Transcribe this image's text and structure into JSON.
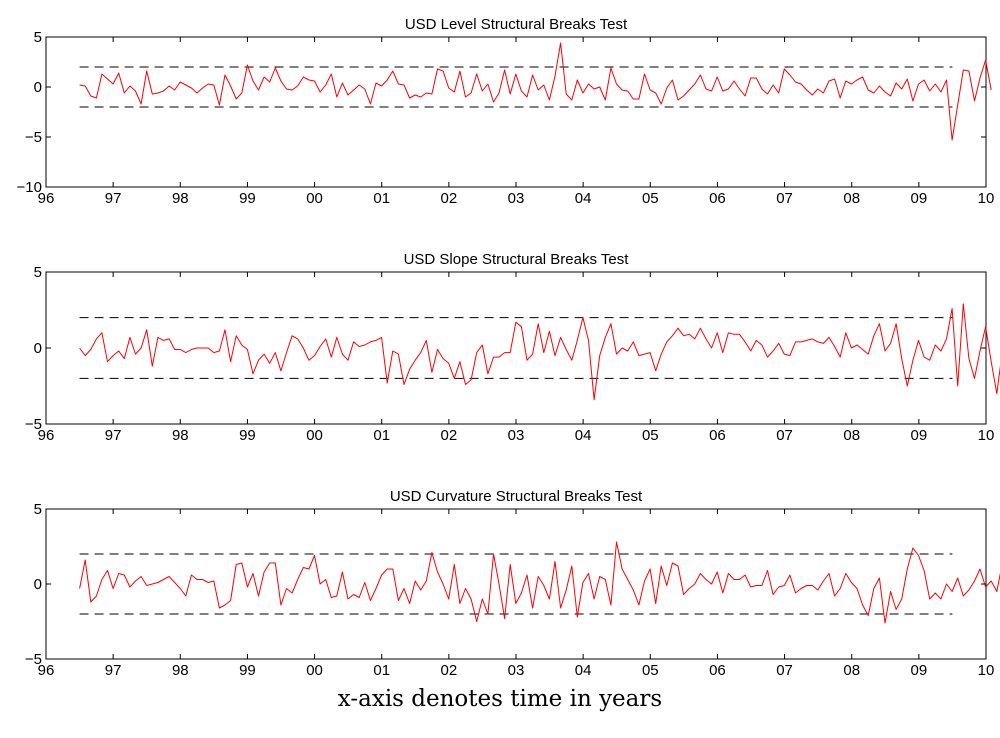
{
  "caption": "x-axis denotes time in years",
  "colors": {
    "series": "#ff0000",
    "bounds": "#000000"
  },
  "chart_data": [
    {
      "type": "line",
      "title": "USD Level Structural Breaks Test",
      "xlabel": "",
      "ylabel": "",
      "xlim": [
        96,
        110
      ],
      "ylim": [
        -10,
        5
      ],
      "xticks": [
        96,
        97,
        98,
        99,
        100,
        101,
        102,
        103,
        104,
        105,
        106,
        107,
        108,
        109,
        110
      ],
      "xticklabels": [
        "96",
        "97",
        "98",
        "99",
        "00",
        "01",
        "02",
        "03",
        "04",
        "05",
        "06",
        "07",
        "08",
        "09",
        "10"
      ],
      "yticks": [
        -10,
        -5,
        0,
        5
      ],
      "yticklabels": [
        "−10",
        "−5",
        "0",
        "5"
      ],
      "bounds": [
        2,
        -2
      ],
      "grid": false,
      "series": [
        {
          "x_start": 96.5,
          "x_step": 0.0833,
          "values": [
            0.2,
            0.1,
            -0.9,
            -1.1,
            1.3,
            0.8,
            0.3,
            1.4,
            -0.6,
            0.1,
            -0.4,
            -1.7,
            1.6,
            -0.7,
            -0.6,
            -0.4,
            0.1,
            -0.3,
            0.5,
            0.2,
            -0.1,
            -0.6,
            -0.1,
            0.3,
            0.2,
            -1.8,
            1.2,
            0.1,
            -1.2,
            -0.6,
            2.2,
            0.6,
            -0.3,
            1.0,
            0.5,
            1.9,
            0.6,
            -0.2,
            -0.3,
            0.1,
            1.0,
            0.7,
            0.6,
            -0.5,
            0.2,
            1.3,
            -1.0,
            0.4,
            -0.8,
            -0.3,
            0.2,
            -0.2,
            -1.7,
            0.4,
            0.1,
            0.7,
            1.6,
            0.3,
            0.2,
            -1.1,
            -0.8,
            -1.0,
            -0.6,
            -0.7,
            1.8,
            1.6,
            -0.1,
            -0.5,
            1.6,
            -1.0,
            -0.6,
            1.3,
            -0.4,
            0.3,
            -1.5,
            -0.6,
            1.7,
            -0.7,
            1.3,
            -0.4,
            -1.0,
            1.2,
            -0.3,
            0.2,
            -1.3,
            1.1,
            4.4,
            -0.7,
            -1.3,
            0.7,
            -0.6,
            0.3,
            -0.2,
            0.0,
            -1.3,
            1.9,
            0.3,
            -0.3,
            -0.4,
            -1.2,
            -1.2,
            1.3,
            -0.3,
            -0.6,
            -1.7,
            -0.1,
            0.7,
            -1.3,
            -0.9,
            -0.3,
            0.3,
            1.2,
            -0.2,
            -0.4,
            1.0,
            -0.4,
            -0.2,
            0.6,
            -0.2,
            -0.9,
            0.9,
            0.9,
            -0.2,
            -0.7,
            0.2,
            -0.6,
            1.8,
            1.2,
            0.5,
            0.3,
            -0.3,
            -0.8,
            -0.2,
            -0.6,
            0.6,
            0.8,
            -1.1,
            0.6,
            0.3,
            0.7,
            1.0,
            -0.3,
            -0.6,
            0.1,
            -0.5,
            -0.9,
            0.4,
            -0.2,
            0.8,
            -1.4,
            0.3,
            0.7,
            -0.4,
            0.3,
            -0.5,
            0.7,
            -5.3,
            -1.8,
            1.7,
            1.6,
            -1.4,
            0.9,
            2.7,
            -0.3
          ]
        }
      ]
    },
    {
      "type": "line",
      "title": "USD Slope Structural Breaks Test",
      "xlabel": "",
      "ylabel": "",
      "xlim": [
        96,
        110
      ],
      "ylim": [
        -5,
        5
      ],
      "xticks": [
        96,
        97,
        98,
        99,
        100,
        101,
        102,
        103,
        104,
        105,
        106,
        107,
        108,
        109,
        110
      ],
      "xticklabels": [
        "96",
        "97",
        "98",
        "99",
        "00",
        "01",
        "02",
        "03",
        "04",
        "05",
        "06",
        "07",
        "08",
        "09",
        "10"
      ],
      "yticks": [
        -5,
        0,
        5
      ],
      "yticklabels": [
        "−5",
        "0",
        "5"
      ],
      "bounds": [
        2,
        -2
      ],
      "grid": false,
      "series": [
        {
          "x_start": 96.5,
          "x_step": 0.0833,
          "values": [
            0.0,
            -0.5,
            -0.1,
            0.6,
            1.0,
            -0.9,
            -0.5,
            -0.2,
            -0.7,
            0.7,
            -0.4,
            0.0,
            1.2,
            -1.2,
            0.7,
            0.5,
            0.6,
            -0.1,
            -0.1,
            -0.3,
            -0.1,
            0.0,
            0.0,
            0.0,
            -0.3,
            -0.2,
            1.2,
            -0.9,
            0.8,
            0.2,
            -0.1,
            -1.7,
            -0.8,
            -0.4,
            -1.0,
            -0.3,
            -1.5,
            -0.3,
            0.8,
            0.6,
            0.0,
            -0.8,
            -0.5,
            0.1,
            0.6,
            -0.6,
            0.7,
            -0.4,
            -0.8,
            0.4,
            0.1,
            0.2,
            0.4,
            0.5,
            0.7,
            -2.3,
            -0.2,
            -0.4,
            -2.4,
            -1.4,
            -0.8,
            -0.3,
            0.5,
            -1.6,
            -0.1,
            -0.7,
            -1.0,
            -2.0,
            -0.9,
            -2.4,
            -2.1,
            -0.3,
            0.2,
            -1.7,
            -0.6,
            -0.6,
            -0.3,
            -0.3,
            1.7,
            1.4,
            -0.8,
            -0.4,
            1.6,
            -0.3,
            1.1,
            -0.5,
            0.7,
            -0.1,
            -0.8,
            0.5,
            2.0,
            0.5,
            -3.4,
            -0.5,
            0.7,
            1.6,
            -0.4,
            0.0,
            -0.2,
            0.4,
            -0.5,
            -0.4,
            -0.3,
            -1.5,
            -0.4,
            0.4,
            0.8,
            1.3,
            0.8,
            0.9,
            0.6,
            1.3,
            0.6,
            0.0,
            1.0,
            -0.3,
            1.0,
            0.9,
            0.9,
            0.4,
            -0.2,
            0.5,
            0.2,
            -0.6,
            -0.2,
            0.3,
            -0.4,
            -0.5,
            0.4,
            0.4,
            0.5,
            0.6,
            0.4,
            0.3,
            0.7,
            0.1,
            -0.6,
            1.0,
            0.0,
            0.2,
            -0.1,
            -0.4,
            0.8,
            1.6,
            -0.2,
            0.3,
            1.6,
            -0.7,
            -2.5,
            -0.8,
            0.5,
            -0.6,
            -0.8,
            0.2,
            -0.2,
            0.6,
            2.6,
            -2.5,
            2.9,
            -0.7,
            -2.0,
            -0.2,
            1.4,
            -0.9,
            -3.0,
            -0.2
          ]
        }
      ]
    },
    {
      "type": "line",
      "title": "USD Curvature Structural Breaks Test",
      "xlabel": "",
      "ylabel": "",
      "xlim": [
        96,
        110
      ],
      "ylim": [
        -5,
        5
      ],
      "xticks": [
        96,
        97,
        98,
        99,
        100,
        101,
        102,
        103,
        104,
        105,
        106,
        107,
        108,
        109,
        110
      ],
      "xticklabels": [
        "96",
        "97",
        "98",
        "99",
        "00",
        "01",
        "02",
        "03",
        "04",
        "05",
        "06",
        "07",
        "08",
        "09",
        "10"
      ],
      "yticks": [
        -5,
        0,
        5
      ],
      "yticklabels": [
        "−5",
        "0",
        "5"
      ],
      "bounds": [
        2,
        -2
      ],
      "grid": false,
      "series": [
        {
          "x_start": 96.5,
          "x_step": 0.0833,
          "values": [
            -0.3,
            1.6,
            -1.2,
            -0.8,
            0.3,
            0.9,
            -0.3,
            0.7,
            0.6,
            -0.2,
            0.2,
            0.5,
            -0.1,
            0.0,
            0.1,
            0.3,
            0.5,
            0.1,
            -0.3,
            -0.8,
            0.6,
            0.3,
            0.3,
            0.1,
            0.2,
            -1.6,
            -1.4,
            -1.1,
            1.3,
            1.4,
            -0.2,
            0.7,
            -0.8,
            0.8,
            1.4,
            1.4,
            -1.4,
            -0.3,
            -0.6,
            0.3,
            1.1,
            1.0,
            1.9,
            0.0,
            0.3,
            -0.9,
            -0.8,
            0.8,
            -1.0,
            -0.7,
            -0.9,
            0.1,
            -1.1,
            -0.3,
            0.6,
            1.0,
            1.0,
            -1.1,
            -0.3,
            -1.3,
            0.2,
            -0.4,
            0.2,
            2.1,
            0.8,
            0.0,
            -1.0,
            1.3,
            -1.3,
            -0.3,
            -1.0,
            -2.5,
            -1.0,
            -2.0,
            2.0,
            0.0,
            -2.3,
            1.3,
            -1.3,
            -0.6,
            0.6,
            -1.6,
            0.5,
            -0.1,
            -1.0,
            1.5,
            -1.6,
            -0.4,
            1.2,
            -2.2,
            0.1,
            0.7,
            -1.0,
            0.5,
            0.3,
            -1.4,
            2.8,
            1.0,
            0.3,
            -0.4,
            -1.4,
            0.2,
            1.0,
            -1.3,
            1.2,
            -0.1,
            1.4,
            1.2,
            -0.7,
            -0.3,
            0.0,
            0.7,
            0.3,
            0.0,
            0.8,
            -0.6,
            0.7,
            0.3,
            0.3,
            0.6,
            -0.2,
            -0.1,
            -0.1,
            0.9,
            -0.7,
            -0.2,
            -0.1,
            0.6,
            -0.6,
            -0.3,
            -0.1,
            -0.1,
            -0.4,
            0.2,
            0.7,
            -0.8,
            -0.3,
            0.7,
            0.1,
            -0.3,
            -1.4,
            -2.1,
            -0.3,
            0.4,
            -2.6,
            -0.5,
            -1.7,
            -1.0,
            1.0,
            2.4,
            1.9,
            0.9,
            -1.0,
            -0.6,
            -1.0,
            0.0,
            -0.5,
            0.4,
            -0.8,
            -0.4,
            0.2,
            1.0,
            -0.2,
            0.2,
            -0.5,
            1.4,
            1.1
          ]
        }
      ]
    }
  ]
}
